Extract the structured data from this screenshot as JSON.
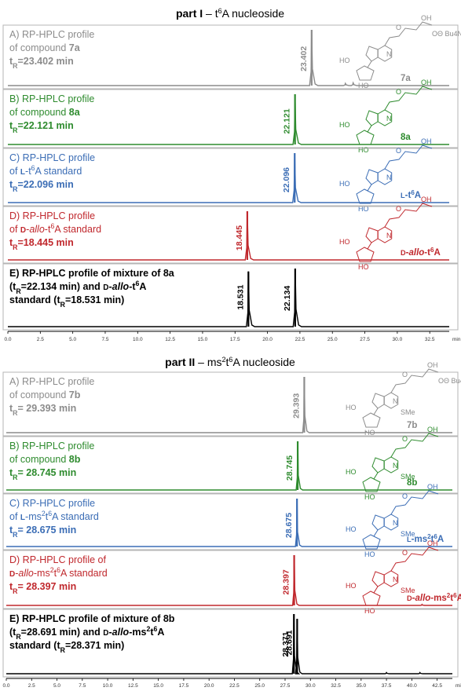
{
  "chart_data": [
    {
      "type": "line",
      "title": "part I – t6A nucleoside",
      "title_main": "part I",
      "title_dash": " – t",
      "title_sup": "6",
      "title_rest": "A nucleoside",
      "xlabel": "",
      "ylabel": "",
      "xunit": "min",
      "xlim": [
        0,
        34
      ],
      "x_ticks": [
        "0.0",
        "2.5",
        "5.0",
        "7.5",
        "10.0",
        "12.5",
        "15.0",
        "17.5",
        "20.0",
        "22.5",
        "25.0",
        "27.5",
        "30.0",
        "32.5"
      ],
      "x_tick_values": [
        0,
        2.5,
        5,
        7.5,
        10,
        12.5,
        15,
        17.5,
        20,
        22.5,
        25,
        27.5,
        30,
        32.5
      ],
      "grid": false,
      "legend": "none",
      "panels": [
        {
          "id": "A",
          "color": "#8c8c8c",
          "label_lines": [
            "A) RP-HPLC profile",
            "of compound 7a"
          ],
          "rt_label": "tR=23.402 min",
          "compound_label": "7a",
          "peaks": [
            {
              "rt": 23.402,
              "height": 1.0,
              "label": "23.402"
            }
          ],
          "minor_peaks": [
            {
              "rt": 26.0,
              "height": 0.04
            },
            {
              "rt": 26.6,
              "height": 0.05
            }
          ],
          "structure_group": "Bu4N"
        },
        {
          "id": "B",
          "color": "#2e8b2e",
          "label_lines": [
            "B) RP-HPLC profile",
            "of compound 8a"
          ],
          "rt_label": "tR=22.121 min",
          "compound_label": "8a",
          "peaks": [
            {
              "rt": 22.121,
              "height": 1.0,
              "label": "22.121"
            }
          ],
          "minor_peaks": []
        },
        {
          "id": "C",
          "color": "#3b6db5",
          "label_lines": [
            "C) RP-HPLC profile",
            "of L-t6A standard"
          ],
          "rt_label": "tR=22.096 min",
          "compound_label": "L-t6A",
          "peaks": [
            {
              "rt": 22.096,
              "height": 1.0,
              "label": "22.096"
            }
          ],
          "minor_peaks": []
        },
        {
          "id": "D",
          "color": "#c0282d",
          "label_lines": [
            "D) RP-HPLC profile",
            "of D-allo-t6A  standard"
          ],
          "rt_label": "tR=18.445 min",
          "compound_label": "D-allo-t6A",
          "peaks": [
            {
              "rt": 18.445,
              "height": 1.0,
              "label": "18.445"
            }
          ],
          "minor_peaks": []
        },
        {
          "id": "E",
          "color": "#000000",
          "label_lines": [
            "E) RP-HPLC profile of mixture of 8a",
            "(tR=22.134 min) and D-allo-t6A",
            "standard (tR=18.531 min)"
          ],
          "rt_label": "",
          "compound_label": "",
          "peaks": [
            {
              "rt": 18.531,
              "height": 0.95,
              "label": "18.531"
            },
            {
              "rt": 22.134,
              "height": 1.0,
              "label": "22.134"
            }
          ],
          "minor_peaks": []
        }
      ]
    },
    {
      "type": "line",
      "title": "part II – ms2t6A nucleoside",
      "title_main": "part II",
      "title_dash": " – ms",
      "title_sup": "2",
      "title_mid": "t",
      "title_sup2": "6",
      "title_rest": "A nucleoside",
      "xlabel": "",
      "ylabel": "",
      "xunit": "min",
      "xlim": [
        0,
        44
      ],
      "x_ticks": [
        "0.0",
        "2.5",
        "5.0",
        "7.5",
        "10.0",
        "12.5",
        "15.0",
        "17.5",
        "20.0",
        "22.5",
        "25.0",
        "27.5",
        "30.0",
        "32.5",
        "35.0",
        "37.5",
        "40.0",
        "42.5"
      ],
      "x_tick_values": [
        0,
        2.5,
        5,
        7.5,
        10,
        12.5,
        15,
        17.5,
        20,
        22.5,
        25,
        27.5,
        30,
        32.5,
        35,
        37.5,
        40,
        42.5
      ],
      "grid": false,
      "legend": "none",
      "panels": [
        {
          "id": "A",
          "color": "#8c8c8c",
          "label_lines": [
            "A) RP-HPLC profile",
            "of compound 7b"
          ],
          "rt_label": "tR= 29.393 min",
          "compound_label": "7b",
          "peaks": [
            {
              "rt": 29.393,
              "height": 1.0,
              "label": "29.393"
            }
          ],
          "minor_peaks": [
            {
              "rt": 35.5,
              "height": 0.02
            }
          ],
          "structure_group": "Bu4N",
          "substituent": "SMe"
        },
        {
          "id": "B",
          "color": "#2e8b2e",
          "label_lines": [
            "B) RP-HPLC profile",
            "of compound 8b"
          ],
          "rt_label": "tR= 28.745 min",
          "compound_label": "8b",
          "peaks": [
            {
              "rt": 28.745,
              "height": 1.0,
              "label": "28.745"
            }
          ],
          "minor_peaks": [],
          "substituent": "SMe"
        },
        {
          "id": "C",
          "color": "#3b6db5",
          "label_lines": [
            "C) RP-HPLC profile",
            "of L-ms2t6A standard"
          ],
          "rt_label": "tR= 28.675 min",
          "compound_label": "L-ms2t6A",
          "peaks": [
            {
              "rt": 28.675,
              "height": 1.0,
              "label": "28.675"
            }
          ],
          "minor_peaks": [],
          "substituent": "SMe"
        },
        {
          "id": "D",
          "color": "#c0282d",
          "label_lines": [
            "D) RP-HPLC profile of",
            "D-allo-ms2t6A  standard"
          ],
          "rt_label": "tR= 28.397 min",
          "compound_label": "D-allo-ms2t6A",
          "peaks": [
            {
              "rt": 28.397,
              "height": 1.0,
              "label": "28.397"
            }
          ],
          "minor_peaks": [
            {
              "rt": 41.0,
              "height": 0.02
            }
          ],
          "substituent": "SMe"
        },
        {
          "id": "E",
          "color": "#000000",
          "label_lines": [
            "E) RP-HPLC profile of mixture of 8b",
            "(tR=28.691 min) and D-allo-ms2t6A",
            "standard (tR=28.371 min)"
          ],
          "rt_label": "",
          "compound_label": "",
          "peaks": [
            {
              "rt": 28.371,
              "height": 1.0,
              "label": "28.371"
            },
            {
              "rt": 28.691,
              "height": 0.92,
              "label": "28.691"
            }
          ],
          "minor_peaks": [
            {
              "rt": 37.5,
              "height": 0.02
            },
            {
              "rt": 40.8,
              "height": 0.02
            }
          ]
        }
      ]
    }
  ],
  "structure_text": {
    "oh": "OH",
    "o": "O",
    "h": "H",
    "n": "N",
    "ho": "HO",
    "ohoh": "HO",
    "smed": "SMe"
  }
}
